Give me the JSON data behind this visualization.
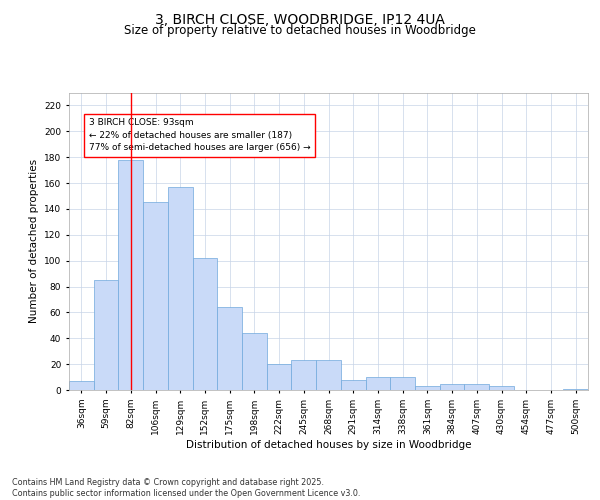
{
  "title": "3, BIRCH CLOSE, WOODBRIDGE, IP12 4UA",
  "subtitle": "Size of property relative to detached houses in Woodbridge",
  "xlabel": "Distribution of detached houses by size in Woodbridge",
  "ylabel": "Number of detached properties",
  "categories": [
    "36sqm",
    "59sqm",
    "82sqm",
    "106sqm",
    "129sqm",
    "152sqm",
    "175sqm",
    "198sqm",
    "222sqm",
    "245sqm",
    "268sqm",
    "291sqm",
    "314sqm",
    "338sqm",
    "361sqm",
    "384sqm",
    "407sqm",
    "430sqm",
    "454sqm",
    "477sqm",
    "500sqm"
  ],
  "values": [
    7,
    85,
    178,
    145,
    157,
    102,
    64,
    44,
    20,
    23,
    23,
    8,
    10,
    10,
    3,
    5,
    5,
    3,
    0,
    0,
    1
  ],
  "bar_color": "#c9daf8",
  "bar_edge_color": "#6fa8dc",
  "red_line_x": 2.0,
  "annotation_text": "3 BIRCH CLOSE: 93sqm\n← 22% of detached houses are smaller (187)\n77% of semi-detached houses are larger (656) →",
  "ylim": [
    0,
    230
  ],
  "yticks": [
    0,
    20,
    40,
    60,
    80,
    100,
    120,
    140,
    160,
    180,
    200,
    220
  ],
  "footer": "Contains HM Land Registry data © Crown copyright and database right 2025.\nContains public sector information licensed under the Open Government Licence v3.0.",
  "bg_color": "#ffffff",
  "grid_color": "#c8d4e8",
  "title_fontsize": 10,
  "subtitle_fontsize": 8.5,
  "axis_label_fontsize": 7.5,
  "tick_fontsize": 6.5,
  "footer_fontsize": 5.8
}
